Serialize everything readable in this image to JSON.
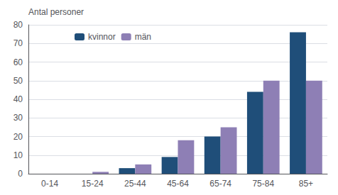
{
  "chart_data": {
    "type": "bar",
    "ylabel": "Antal personer",
    "categories": [
      "0-14",
      "15-24",
      "25-44",
      "45-64",
      "65-74",
      "75-84",
      "85+"
    ],
    "series": [
      {
        "name": "kvinnor",
        "color": "#1F4E79",
        "values": [
          0,
          0,
          3,
          9,
          20,
          44,
          76
        ]
      },
      {
        "name": "män",
        "color": "#8E7FB5",
        "values": [
          0,
          1,
          5,
          18,
          25,
          50,
          50
        ]
      }
    ],
    "ylim": [
      0,
      80
    ],
    "yticks": [
      0,
      10,
      20,
      30,
      40,
      50,
      60,
      70,
      80
    ],
    "grid": true,
    "legend": "upper left"
  }
}
